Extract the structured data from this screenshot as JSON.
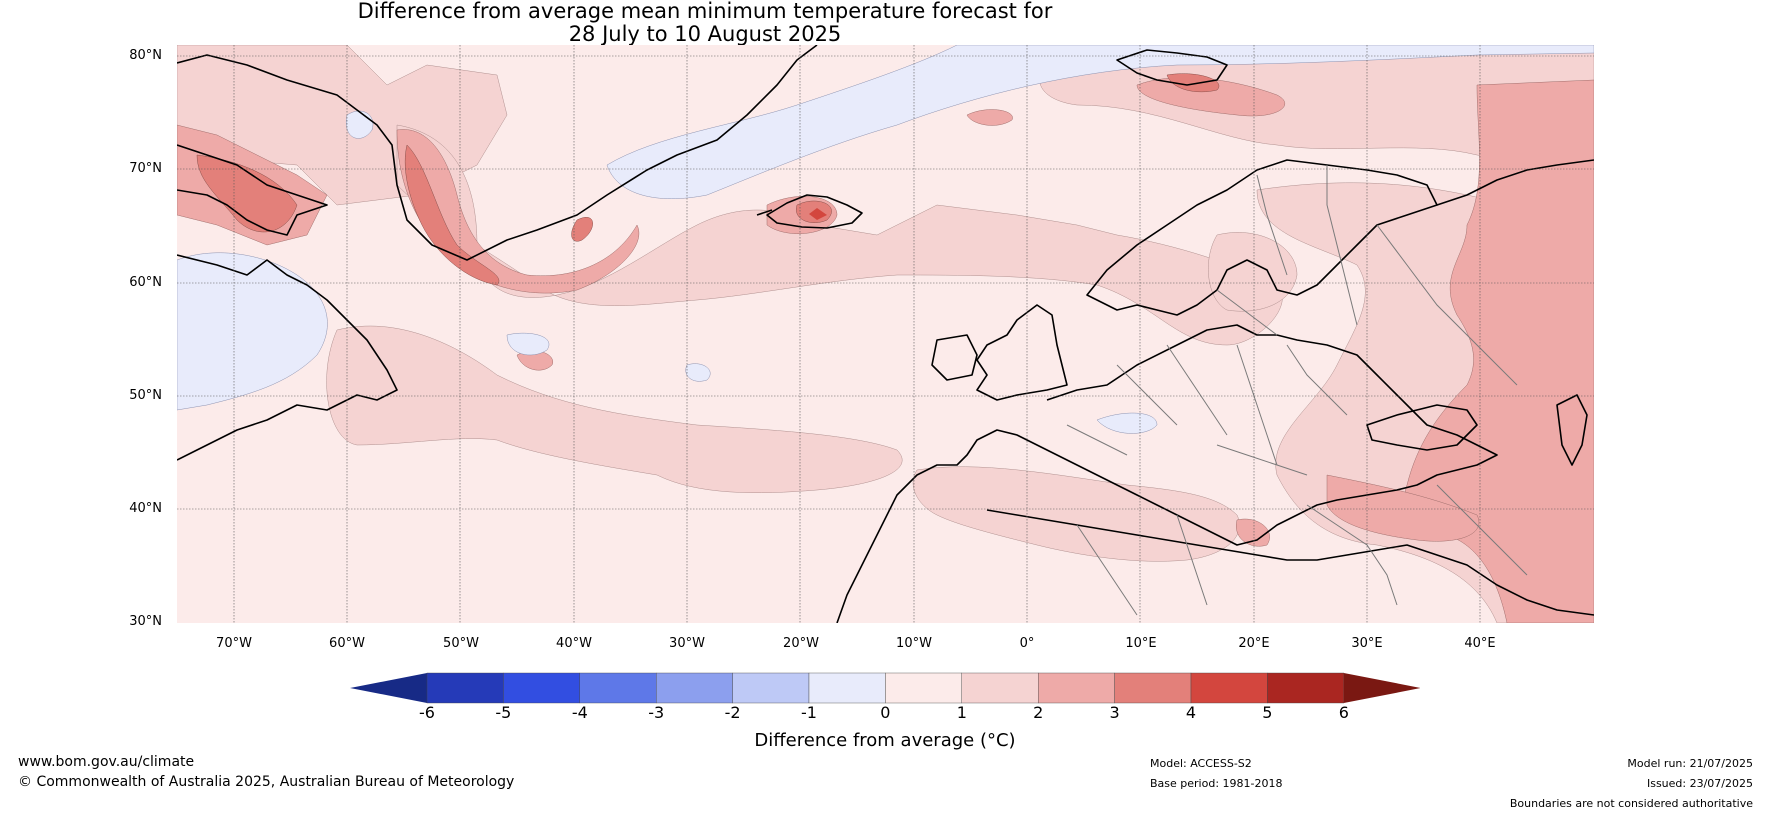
{
  "title": {
    "line1": "Difference from average mean minimum temperature forecast for",
    "line2": "28 July to 10 August 2025"
  },
  "map": {
    "lat_labels": [
      "80°N",
      "70°N",
      "60°N",
      "50°N",
      "40°N",
      "30°N"
    ],
    "lon_labels": [
      "70°W",
      "60°W",
      "50°W",
      "40°W",
      "30°W",
      "20°W",
      "10°W",
      "0°",
      "10°E",
      "20°E",
      "30°E",
      "40°E"
    ],
    "projection_extent": {
      "lon": [
        -75,
        50
      ],
      "lat": [
        30,
        81
      ]
    },
    "colors": {
      "background": "#fcebea",
      "anom_0_1": "#fcebea",
      "anom_1_2": "#f5d3d2",
      "anom_2_3": "#eeaaa8",
      "anom_3_4": "#e3807a",
      "anom_4_5": "#d3463e",
      "anom_neg_1_0": "#e8ebfb",
      "coastline": "#000000",
      "borders": "#7a7a7a",
      "gridlines": "#555555"
    }
  },
  "colorbar": {
    "ticks": [
      "-6",
      "-5",
      "-4",
      "-3",
      "-2",
      "-1",
      "0",
      "1",
      "2",
      "3",
      "4",
      "5",
      "6"
    ],
    "colors": [
      "#253ab8",
      "#324ee1",
      "#5e78e8",
      "#8c9fee",
      "#bec9f6",
      "#e8ebfb",
      "#fcebea",
      "#f5d3d2",
      "#eeaaa8",
      "#e3807a",
      "#d3463e",
      "#aa2621"
    ],
    "under_color": "#172a86",
    "over_color": "#7a1812",
    "label": "Difference from average (°C)"
  },
  "footer": {
    "website": "www.bom.gov.au/climate",
    "copyright": "© Commonwealth of Australia 2025, Australian Bureau of Meteorology",
    "model": "Model: ACCESS-S2",
    "base_period": "Base period: 1981-2018",
    "model_run": "Model run: 21/07/2025",
    "issued": "Issued: 23/07/2025",
    "disclaimer": "Boundaries are not considered authoritative"
  }
}
